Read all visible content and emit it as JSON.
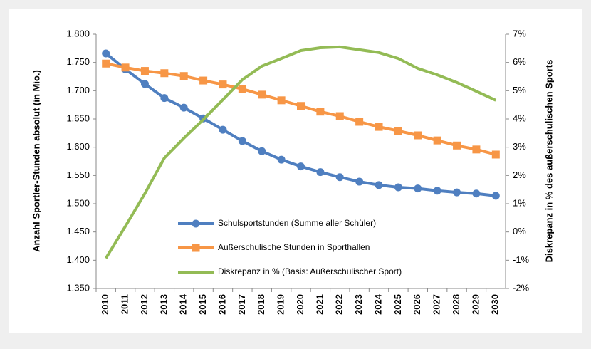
{
  "chart_data": {
    "type": "line",
    "y_label": "Anzahl Sportler-Stunden absolut (in Mio.)",
    "y2_label": "Diskrepanz in % des außerschulischen Sports",
    "categories": [
      "2010",
      "2011",
      "2012",
      "2013",
      "2014",
      "2015",
      "2016",
      "2017",
      "2018",
      "2019",
      "2020",
      "2021",
      "2022",
      "2023",
      "2024",
      "2025",
      "2026",
      "2027",
      "2028",
      "2029",
      "2030"
    ],
    "series": [
      {
        "name": "Schulsportstunden (Summe aller Schüler)",
        "color": "#4f7fc0",
        "marker": "circle",
        "values": [
          1.766,
          1.738,
          1.712,
          1.687,
          1.67,
          1.651,
          1.631,
          1.611,
          1.593,
          1.578,
          1.566,
          1.556,
          1.547,
          1.539,
          1.533,
          1.529,
          1.527,
          1.523,
          1.52,
          1.518,
          1.514
        ]
      },
      {
        "name": "Außerschulische Stunden in Sporthallen",
        "color": "#f79646",
        "marker": "square",
        "values": [
          1.748,
          1.741,
          1.735,
          1.731,
          1.726,
          1.718,
          1.711,
          1.703,
          1.693,
          1.683,
          1.673,
          1.663,
          1.655,
          1.645,
          1.636,
          1.629,
          1.621,
          1.612,
          1.603,
          1.596,
          1.587
        ]
      },
      {
        "name": "Diskrepanz in % (Basis: Außerschulischer Sport)",
        "color": "#93bb55",
        "axis": "y2",
        "values": [
          -0.93,
          0.2,
          1.36,
          2.62,
          3.32,
          3.98,
          4.68,
          5.39,
          5.87,
          6.14,
          6.42,
          6.52,
          6.55,
          6.45,
          6.35,
          6.14,
          5.79,
          5.56,
          5.29,
          4.98,
          4.66
        ]
      }
    ],
    "ylim": [
      1.35,
      1.8
    ],
    "yticks": [
      {
        "value": 1.35,
        "label": "1.350"
      },
      {
        "value": 1.4,
        "label": "1.400"
      },
      {
        "value": 1.45,
        "label": "1.450"
      },
      {
        "value": 1.5,
        "label": "1.500"
      },
      {
        "value": 1.55,
        "label": "1.550"
      },
      {
        "value": 1.6,
        "label": "1.600"
      },
      {
        "value": 1.65,
        "label": "1.650"
      },
      {
        "value": 1.7,
        "label": "1.700"
      },
      {
        "value": 1.75,
        "label": "1.750"
      },
      {
        "value": 1.8,
        "label": "1.800"
      }
    ],
    "y2lim": [
      -2,
      7
    ],
    "y2ticks": [
      {
        "value": -2,
        "label": "-2%"
      },
      {
        "value": -1,
        "label": "-1%"
      },
      {
        "value": 0,
        "label": "0%"
      },
      {
        "value": 1,
        "label": "1%"
      },
      {
        "value": 2,
        "label": "2%"
      },
      {
        "value": 3,
        "label": "3%"
      },
      {
        "value": 4,
        "label": "4%"
      },
      {
        "value": 5,
        "label": "5%"
      },
      {
        "value": 6,
        "label": "6%"
      },
      {
        "value": 7,
        "label": "7%"
      }
    ]
  }
}
